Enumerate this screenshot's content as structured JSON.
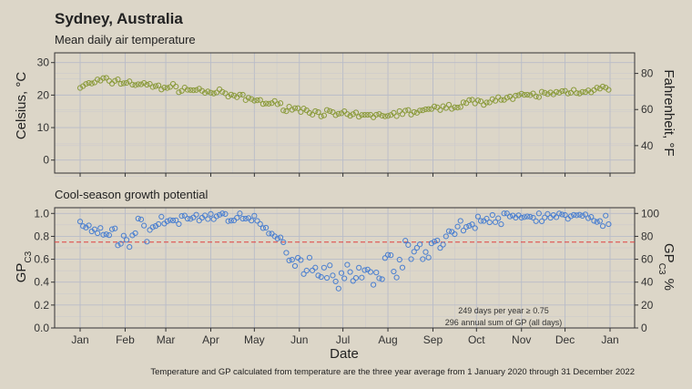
{
  "chart_data": [
    {
      "type": "scatter",
      "title": "Sydney, Australia",
      "subtitle": "Mean daily air temperature",
      "ylabel": "Celsius, °C",
      "ylabel_right": "Fahrenheit, °F",
      "xlabel": "",
      "ylim": [
        -4,
        33
      ],
      "yticks": [
        0,
        10,
        20,
        30
      ],
      "yticks_right": [
        40,
        60,
        80
      ],
      "grid": true,
      "point_color": "#8a9a3a",
      "x_months": [
        "Jan",
        "Feb",
        "Mar",
        "Apr",
        "May",
        "Jun",
        "Jul",
        "Aug",
        "Sep",
        "Oct",
        "Nov",
        "Dec",
        "Jan"
      ],
      "series": [
        {
          "curve_day": [
            1,
            15,
            32,
            46,
            60,
            91,
            121,
            152,
            182,
            198,
            213,
            244,
            274,
            305,
            335,
            350,
            365
          ],
          "curve_value": [
            22.5,
            24.5,
            24.0,
            23.0,
            22.5,
            21.0,
            18.5,
            15.5,
            13.8,
            13.5,
            14.0,
            15.5,
            18.0,
            19.5,
            21.0,
            21.5,
            22.0
          ]
        }
      ]
    },
    {
      "type": "scatter",
      "subtitle": "Cool-season growth potential",
      "ylabel": "GP C3",
      "ylabel_right": "GP C3 %",
      "xlabel": "Date",
      "ylim": [
        0,
        1.05
      ],
      "yticks": [
        0.0,
        0.2,
        0.4,
        0.6,
        0.8,
        1.0
      ],
      "yticks_right": [
        0,
        20,
        40,
        60,
        80,
        100
      ],
      "threshold": 0.75,
      "threshold_color": "#e04040",
      "point_color": "#4a7fd0",
      "grid": true,
      "x_months": [
        "Jan",
        "Feb",
        "Mar",
        "Apr",
        "May",
        "Jun",
        "Jul",
        "Aug",
        "Sep",
        "Oct",
        "Nov",
        "Dec",
        "Jan"
      ],
      "series": [
        {
          "curve_day": [
            1,
            15,
            32,
            46,
            60,
            91,
            110,
            121,
            135,
            152,
            182,
            198,
            213,
            230,
            244,
            260,
            274,
            305,
            335,
            350,
            365
          ],
          "curve_value": [
            0.9,
            0.82,
            0.78,
            0.88,
            0.93,
            0.98,
            0.98,
            0.92,
            0.8,
            0.58,
            0.46,
            0.45,
            0.55,
            0.66,
            0.72,
            0.86,
            0.93,
            0.97,
            0.98,
            0.95,
            0.95
          ]
        }
      ]
    }
  ],
  "annotation": {
    "days_above": "249 days per year ≥ 0.75",
    "annual_sum": "296 annual sum of GP (all days)"
  },
  "caption": "Temperature and GP calculated from temperature are the three year average from 1 January 2020 through 31 December 2022"
}
